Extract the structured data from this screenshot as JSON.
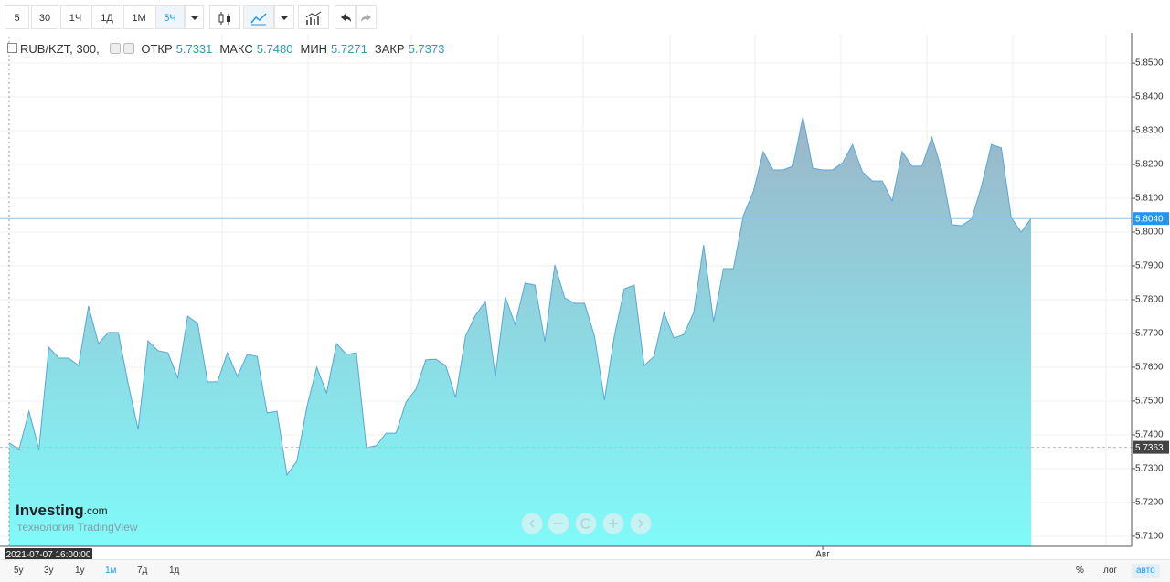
{
  "toolbar": {
    "intervals": [
      "5",
      "30",
      "1Ч",
      "1Д",
      "1М",
      "5Ч"
    ]
  },
  "legend": {
    "symbol": "RUB/KZT, 300,",
    "fields": [
      {
        "name": "ОТКР",
        "value": "5.7331"
      },
      {
        "name": "МАКС",
        "value": "5.7480"
      },
      {
        "name": "МИН",
        "value": "5.7271"
      },
      {
        "name": "ЗАКР",
        "value": "5.7373"
      }
    ]
  },
  "chart_data": {
    "type": "area",
    "categories": [
      null,
      null,
      null,
      null,
      null,
      null,
      null,
      null,
      null,
      null,
      null,
      null,
      null,
      null,
      null,
      null,
      null,
      null,
      null,
      null,
      null,
      null,
      null,
      null,
      null,
      null,
      null,
      null,
      null,
      null,
      null,
      null,
      null,
      null,
      null,
      null,
      null,
      null,
      null,
      null,
      null,
      null,
      null,
      null,
      null,
      null,
      null,
      null,
      null,
      null,
      null,
      null,
      null,
      null,
      null,
      null,
      null,
      null,
      null,
      null,
      null,
      null,
      null,
      null,
      null,
      null,
      null,
      null,
      null,
      null,
      null,
      null,
      null,
      null,
      null,
      null,
      null,
      null,
      null,
      null,
      null,
      null,
      "Авг",
      null,
      null,
      null,
      null,
      null,
      null,
      null,
      null,
      null,
      null,
      null,
      null,
      null,
      null,
      null,
      null,
      null,
      null,
      null,
      null,
      null
    ],
    "series": [
      {
        "color": "#5aa6d8",
        "values": [
          5.7376,
          5.7357,
          5.747,
          5.7357,
          5.7659,
          5.7627,
          5.7627,
          5.7605,
          5.7781,
          5.767,
          5.7703,
          5.7703,
          5.7551,
          5.7416,
          5.7678,
          5.7649,
          5.7643,
          5.7568,
          5.7751,
          5.773,
          5.7557,
          5.7557,
          5.7643,
          5.7573,
          5.7638,
          5.7632,
          5.7465,
          5.747,
          5.7281,
          5.7322,
          5.7481,
          5.76,
          5.7524,
          5.767,
          5.7638,
          5.7643,
          5.7362,
          5.7368,
          5.7405,
          5.7405,
          5.7497,
          5.7535,
          5.7622,
          5.7624,
          5.7605,
          5.7511,
          5.7692,
          5.7754,
          5.7795,
          5.7573,
          5.7808,
          5.7727,
          5.7849,
          5.7843,
          5.7676,
          5.7903,
          5.7805,
          5.7789,
          5.7789,
          5.7692,
          5.7503,
          5.7692,
          5.7832,
          5.7843,
          5.7605,
          5.7632,
          5.7762,
          5.7686,
          5.7697,
          5.7762,
          5.7962,
          5.7735,
          5.7892,
          5.7892,
          5.8049,
          5.8119,
          5.8238,
          5.8184,
          5.8184,
          5.8195,
          5.8341,
          5.8189,
          5.8184,
          5.8184,
          5.8205,
          5.8259,
          5.8178,
          5.8151,
          5.8151,
          5.8092,
          5.8238,
          5.8195,
          5.8195,
          5.8281,
          5.8184,
          5.8022,
          5.8019,
          5.8038,
          5.8135,
          5.8259,
          5.8249,
          5.8043,
          5.8,
          5.804
        ]
      }
    ],
    "fill_top": "#9cb4c7",
    "fill_bottom": "#80fafa",
    "ylim": [
      5.707,
      5.8584
    ],
    "yticks": [
      {
        "value": 5.71,
        "label": "5.7100"
      },
      {
        "value": 5.72,
        "label": "5.7200"
      },
      {
        "value": 5.73,
        "label": "5.7300"
      },
      {
        "value": 5.74,
        "label": "5.7400"
      },
      {
        "value": 5.75,
        "label": "5.7500"
      },
      {
        "value": 5.76,
        "label": "5.7600"
      },
      {
        "value": 5.77,
        "label": "5.7700"
      },
      {
        "value": 5.78,
        "label": "5.7800"
      },
      {
        "value": 5.79,
        "label": "5.7900"
      },
      {
        "value": 5.8,
        "label": "5.8000"
      },
      {
        "value": 5.81,
        "label": "5.8100"
      },
      {
        "value": 5.82,
        "label": "5.8200"
      },
      {
        "value": 5.83,
        "label": "5.8300"
      },
      {
        "value": 5.84,
        "label": "5.8400"
      },
      {
        "value": 5.85,
        "label": "5.8500"
      }
    ],
    "grid": true,
    "price_lines": [
      {
        "value": 5.804,
        "label": "5.8040",
        "color": "#2196f3"
      },
      {
        "value": 5.7363,
        "label": "5.7363",
        "color": "#444444"
      }
    ]
  },
  "crosshair_label": "2021-07-07 16:00:00",
  "watermark": {
    "brand": "Investing",
    "suffix": ".com",
    "tagline": "технология TradingView"
  },
  "range_buttons": [
    "5y",
    "3y",
    "1y",
    "1м",
    "7д",
    "1д"
  ],
  "scale_buttons": [
    "%",
    "лог",
    "авто"
  ]
}
